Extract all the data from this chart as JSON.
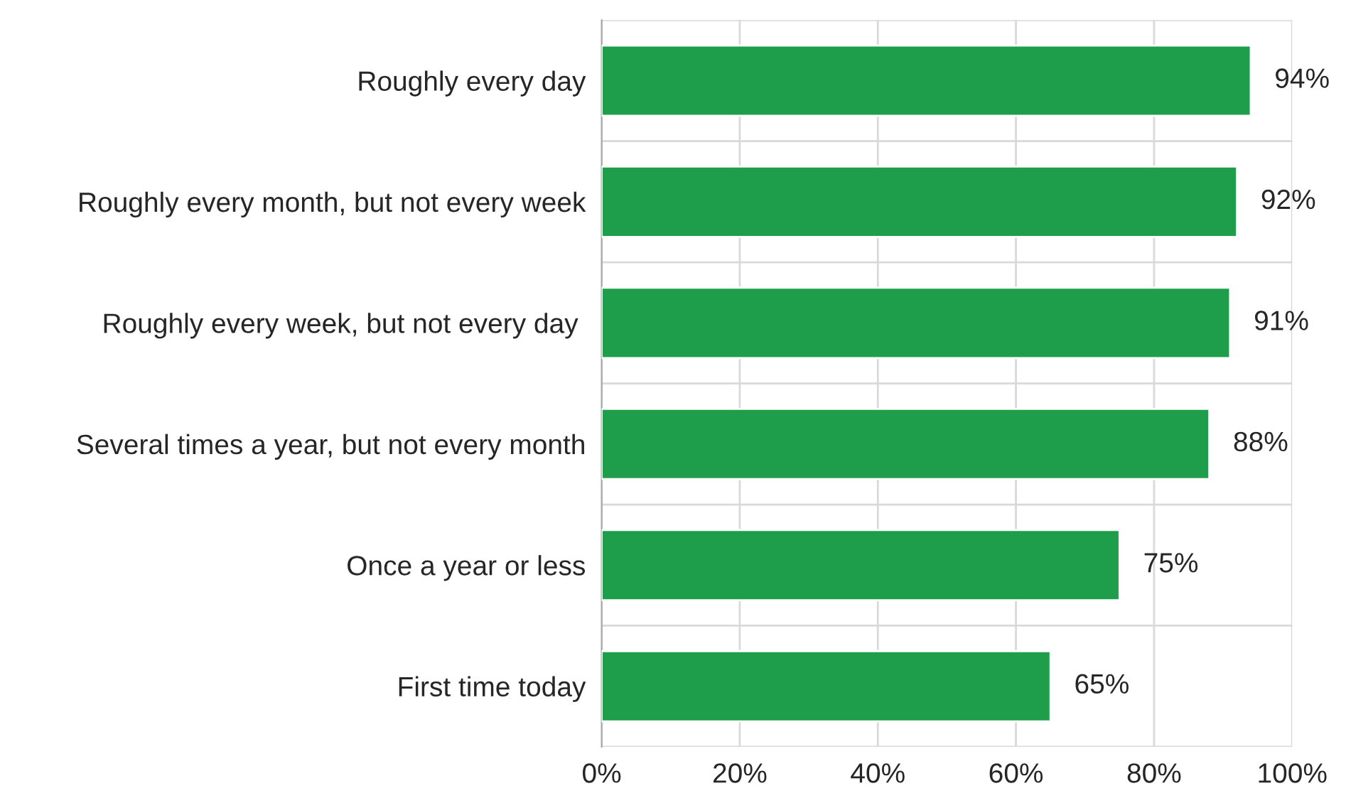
{
  "chart_data": {
    "type": "bar",
    "orientation": "horizontal",
    "categories": [
      "Roughly every day",
      "Roughly every month, but not every week",
      "Roughly every week, but not every day ",
      "Several times a year, but not every month",
      "Once a year or less",
      "First time today"
    ],
    "values": [
      94,
      92,
      91,
      88,
      75,
      65
    ],
    "value_labels": [
      "94%",
      "92%",
      "91%",
      "88%",
      "75%",
      "65%"
    ],
    "color": "#1e9e4a",
    "xlim": [
      0,
      100
    ],
    "xticks": [
      {
        "value": 0,
        "label": "0%"
      },
      {
        "value": 20,
        "label": "20%"
      },
      {
        "value": 40,
        "label": "40%"
      },
      {
        "value": 60,
        "label": "60%"
      },
      {
        "value": 80,
        "label": "80%"
      },
      {
        "value": 100,
        "label": "100%"
      }
    ],
    "grid": true,
    "legend": false
  }
}
